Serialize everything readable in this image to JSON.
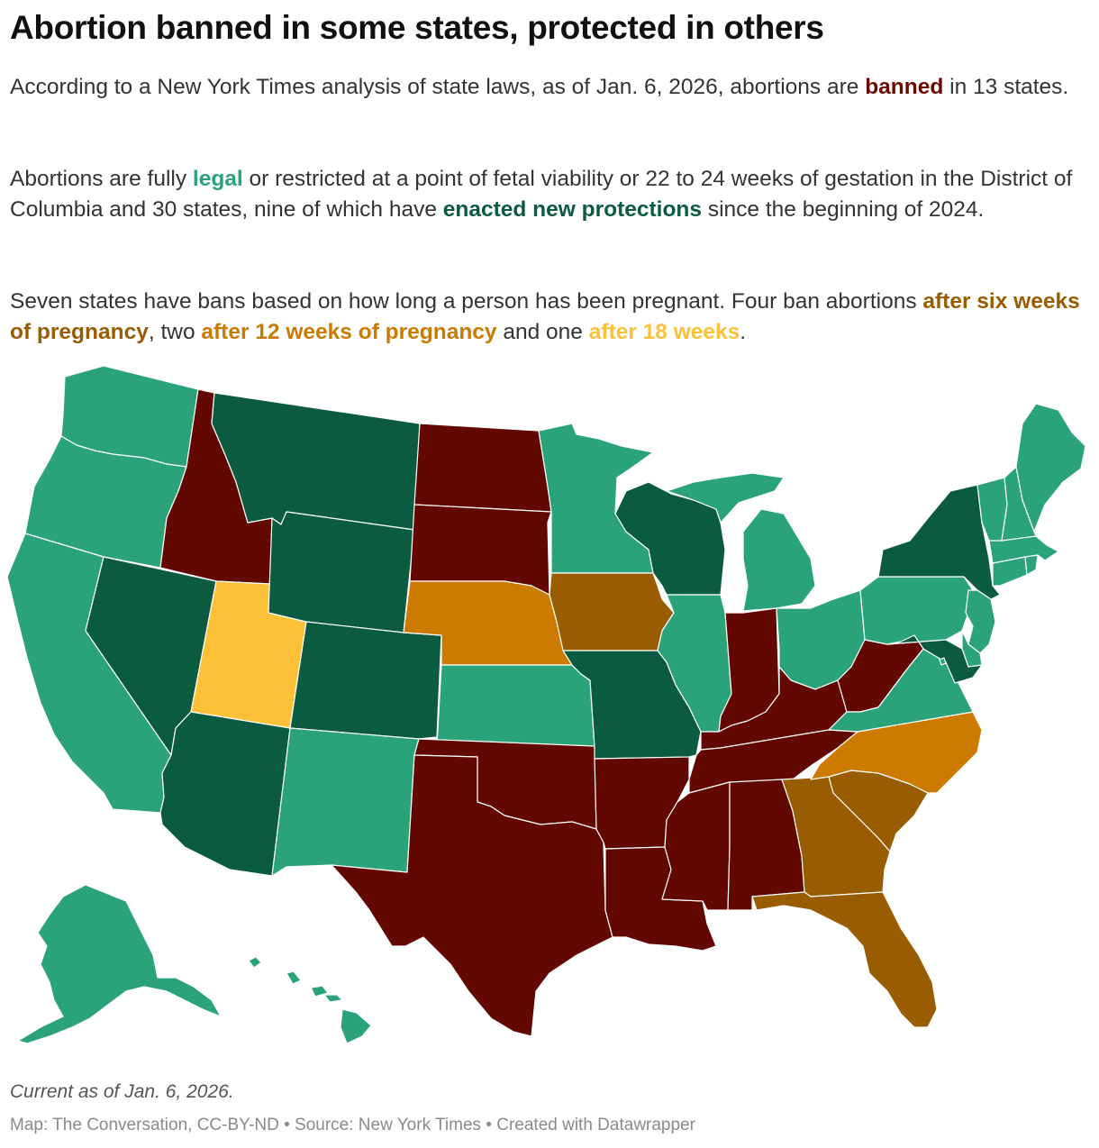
{
  "title": "Abortion banned in some states, protected in others",
  "paragraph1": {
    "text1": "According to a New York Times analysis of state laws, as of Jan. 6, 2026, abortions are ",
    "banned": "banned",
    "text2": " in 13 states."
  },
  "paragraph2": {
    "text1": "Abortions are fully ",
    "legal": "legal",
    "text2": " or restricted at a point of fetal viability or 22 to 24 weeks of gestation in the District of Columbia and 30 states, nine of which have ",
    "protections": "enacted new protections",
    "text3": " since the beginning of 2024."
  },
  "paragraph3": {
    "text1": "Seven states have bans based on how long a person has been pregnant. Four ban abortions ",
    "six_weeks": "after six weeks of pregnancy",
    "text2": ", two ",
    "twelve_weeks": "after 12 weeks of pregnancy",
    "text3": " and one ",
    "eighteen_weeks": "after 18 weeks",
    "text4": "."
  },
  "colors": {
    "banned": "#630800",
    "legal": "#2aa37a",
    "protections": "#0b5b41",
    "six_weeks": "#9a5c00",
    "twelve_weeks": "#cc7b00",
    "eighteen_weeks": "#fcc138"
  },
  "states": {
    "banned": [
      "ID",
      "ND",
      "SD",
      "OK",
      "TX",
      "AR",
      "LA",
      "MS",
      "AL",
      "TN",
      "KY",
      "IN",
      "WV"
    ],
    "legal": [
      "WA",
      "OR",
      "CA",
      "NM",
      "KS",
      "MN",
      "IL",
      "MI",
      "OH",
      "PA",
      "NJ",
      "DE",
      "VA",
      "VT",
      "NH",
      "ME",
      "MA",
      "CT",
      "RI",
      "AK",
      "HI",
      "DC"
    ],
    "protections": [
      "MT",
      "WY",
      "CO",
      "NV",
      "AZ",
      "MO",
      "WI",
      "NY",
      "MD"
    ],
    "six_weeks": [
      "IA",
      "GA",
      "SC",
      "FL"
    ],
    "twelve_weeks": [
      "NE",
      "NC"
    ],
    "eighteen_weeks": [
      "UT"
    ]
  },
  "note": "Current as of Jan. 6, 2026.",
  "credit": "Map: The Conversation, CC-BY-ND • Source: New York Times • Created with Datawrapper"
}
